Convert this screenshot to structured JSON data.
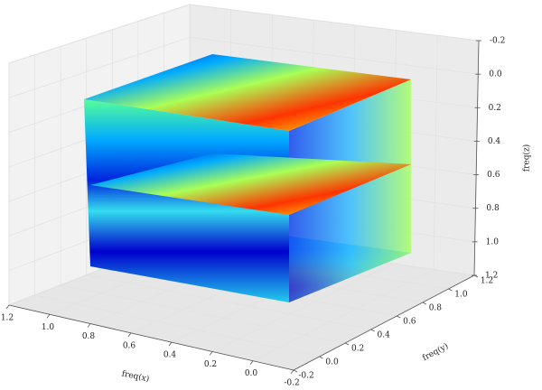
{
  "chart_data": {
    "type": "slices3d",
    "xlabel": "freq(x)",
    "ylabel": "freq(y)",
    "zlabel": "freq(z)",
    "xlim": [
      1.2,
      -0.2
    ],
    "xticks": [
      1.2,
      {
        "value": 1.0,
        "label": "1.0"
      },
      0.8,
      0.6,
      0.4,
      0.2,
      {
        "value": 0.0,
        "label": "0.0"
      },
      -0.2
    ],
    "ylim": [
      -0.2,
      1.2
    ],
    "yticks": [
      -0.2,
      {
        "value": 0.0,
        "label": "0.0"
      },
      0.2,
      0.4,
      0.6,
      0.8,
      {
        "value": 1.0,
        "label": "1.0"
      },
      1.2
    ],
    "zlim": [
      -0.2,
      1.2
    ],
    "zticks": [
      -0.2,
      {
        "value": 0.0,
        "label": "0.0"
      },
      0.2,
      0.4,
      0.6,
      0.8,
      {
        "value": 1.0,
        "label": "1.0"
      },
      1.2
    ],
    "grid": true
  }
}
